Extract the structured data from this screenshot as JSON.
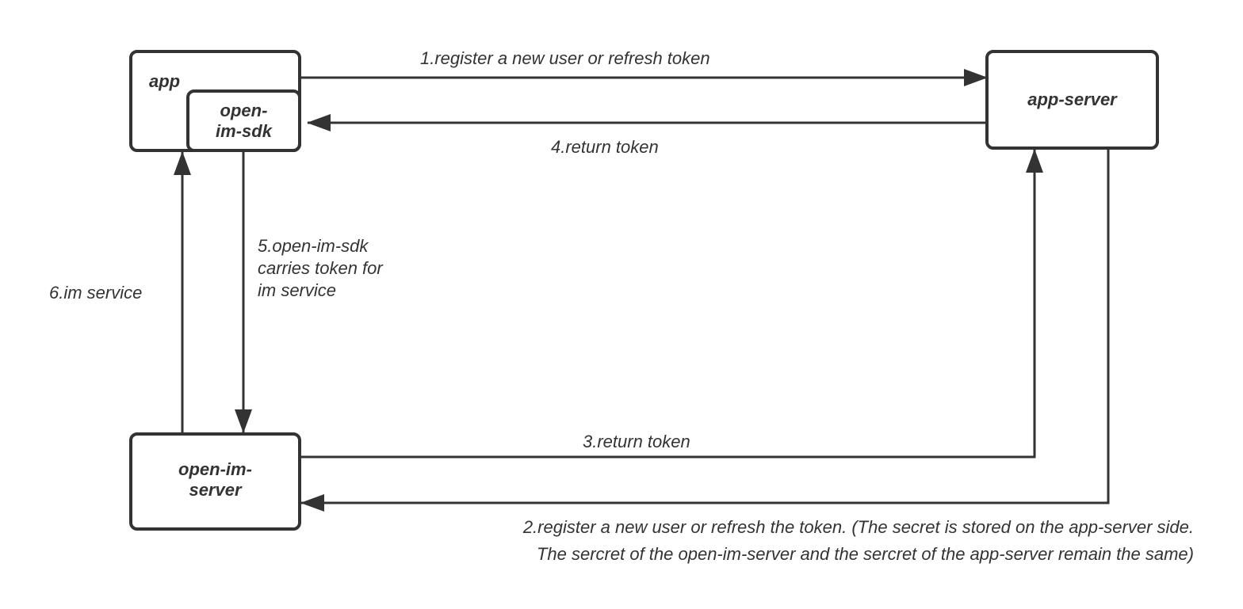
{
  "nodes": {
    "app": "app",
    "sdk_line1": "open-",
    "sdk_line2": "im-sdk",
    "app_server": "app-server",
    "im_server_line1": "open-im-",
    "im_server_line2": "server"
  },
  "edges": {
    "e1": "1.register a new user or refresh token",
    "e2_line1": "2.register a new user or refresh the token. (The secret is stored on the app-server side.",
    "e2_line2": "The sercret of the open-im-server and the sercret of the app-server remain the same)",
    "e3": "3.return token",
    "e4": "4.return token",
    "e5_line1": "5.open-im-sdk",
    "e5_line2": "carries token for",
    "e5_line3": "im service",
    "e6": "6.im service"
  },
  "colors": {
    "stroke": "#333333",
    "background": "#ffffff"
  }
}
